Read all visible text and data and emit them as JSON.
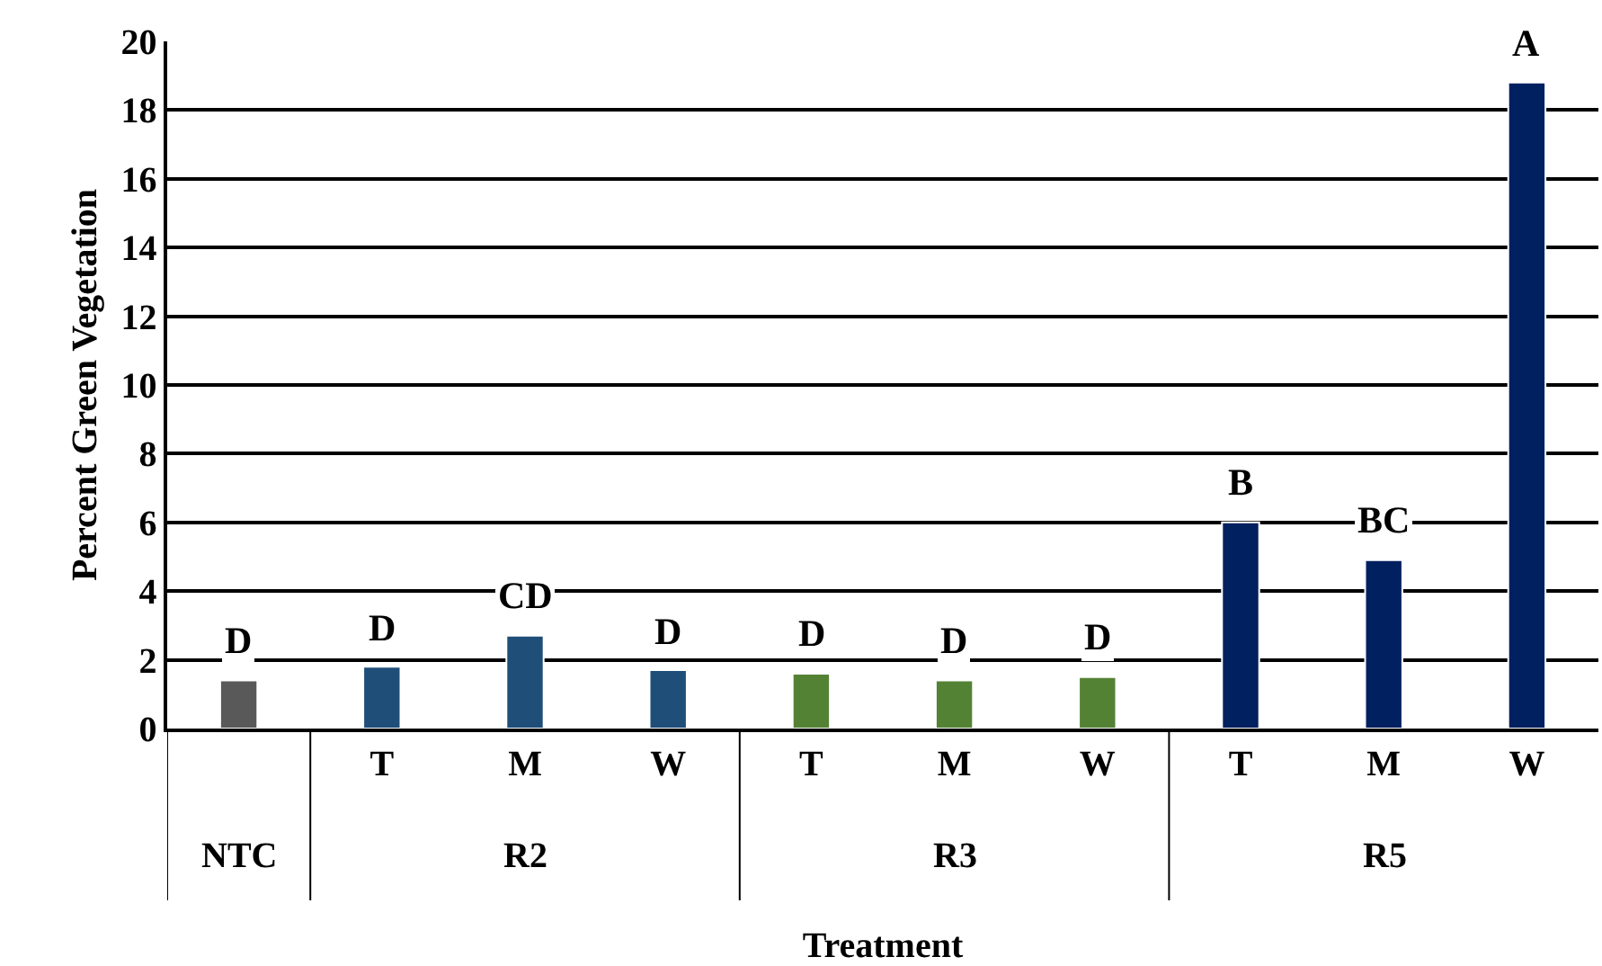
{
  "chart_data": {
    "type": "bar",
    "xlabel": "Treatment",
    "ylabel": "Percent Green Vegetation",
    "categories": [
      null,
      "T",
      "M",
      "W",
      "T",
      "M",
      "W",
      "T",
      "M",
      "W"
    ],
    "values": [
      1.4,
      1.8,
      2.7,
      1.7,
      1.6,
      1.4,
      1.5,
      6.0,
      4.9,
      18.8
    ],
    "value_labels": [
      "D",
      "D",
      "CD",
      "D",
      "D",
      "D",
      "D",
      "B",
      "BC",
      "A"
    ],
    "colors": [
      "#595959",
      "#1f4e79",
      "#1f4e79",
      "#1f4e79",
      "#548235",
      "#548235",
      "#548235",
      "#002060",
      "#002060",
      "#002060"
    ],
    "annotations": [
      "NTC",
      "R2",
      "R3",
      "R5"
    ],
    "ylim": [
      0,
      20
    ],
    "yticks": [
      0,
      2,
      4,
      6,
      8,
      10,
      12,
      14,
      16,
      18,
      20
    ],
    "grid": "y"
  }
}
